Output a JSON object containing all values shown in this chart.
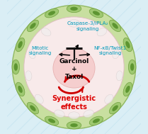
{
  "bg_color": "#daeef5",
  "outer_circle_color": "#c8dfa0",
  "outer_circle_edge": "#90b860",
  "inner_circle_color": "#f8eaea",
  "inner_circle_edge": "#ddc0c0",
  "center_circle_color": "#f5c8c8",
  "cell_color": "#9ec870",
  "cell_dark": "#3a7a10",
  "title_main": "Garcinol\n+\nTaxol",
  "title_main_size": 6.5,
  "synergy_text": "Synergistic\neffects",
  "synergy_color": "#dd0000",
  "synergy_size": 7.0,
  "label_caspase": "Caspase-3/iPLA₂\nsignaling",
  "label_mitotic": "Mitotic\nsignaling",
  "label_nfkb": "NF-κB/Twist1\nsignaling",
  "label_color": "#0099bb",
  "label_size": 5.2,
  "inhibit_color": "#111111",
  "arrow_color": "#cc0000",
  "fig_width": 2.09,
  "fig_height": 1.89,
  "dpi": 100
}
